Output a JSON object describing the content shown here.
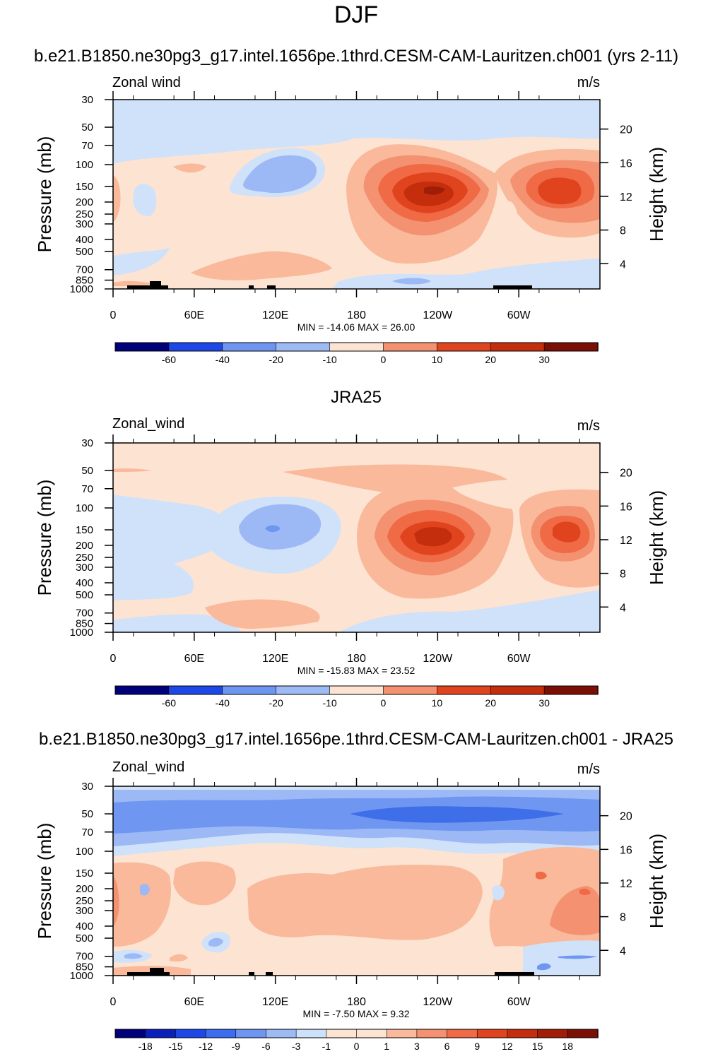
{
  "figure": {
    "season": "DJF",
    "colors": {
      "neg4": "#3e6fe8",
      "neg3": "#6f97f1",
      "neg2": "#9db9f5",
      "neg1": "#cfe2fa",
      "pos1": "#fde3d2",
      "pos2": "#f9b99a",
      "pos3": "#f39170",
      "pos4": "#ef6a45",
      "pos5": "#e0441f",
      "pos6": "#c52e0d",
      "land": "#000000"
    }
  },
  "chart_data": [
    {
      "type": "contour",
      "title": "b.e21.B1850.ne30pg3_g17.intel.1656pe.1thrd.CESM-CAM-Lauritzen.ch001 (yrs 2-11)",
      "variable_label": "Zonal wind",
      "units": "m/s",
      "ylabel": "Pressure (mb)",
      "ylabel_right": "Height (km)",
      "x_ticks": [
        "0",
        "60E",
        "120E",
        "180",
        "120W",
        "60W"
      ],
      "pressure_ticks": [
        "30",
        "50",
        "70",
        "100",
        "150",
        "200",
        "250",
        "300",
        "400",
        "500",
        "700",
        "850",
        "1000"
      ],
      "height_ticks": [
        "20",
        "16",
        "12",
        "8",
        "4"
      ],
      "min_max": "MIN = -14.06  MAX =  26.00",
      "colorbar_labels": [
        "-60",
        "-40",
        "-20",
        "-10",
        "0",
        "10",
        "20",
        "30"
      ],
      "min": -14.06,
      "max": 26.0
    },
    {
      "type": "contour",
      "title": "JRA25",
      "variable_label": "Zonal_wind",
      "units": "m/s",
      "ylabel": "Pressure (mb)",
      "ylabel_right": "Height (km)",
      "x_ticks": [
        "0",
        "60E",
        "120E",
        "180",
        "120W",
        "60W"
      ],
      "pressure_ticks": [
        "30",
        "50",
        "70",
        "100",
        "150",
        "200",
        "250",
        "300",
        "400",
        "500",
        "700",
        "850",
        "1000"
      ],
      "height_ticks": [
        "20",
        "16",
        "12",
        "8",
        "4"
      ],
      "min_max": "MIN = -15.83  MAX =  23.52",
      "colorbar_labels": [
        "-60",
        "-40",
        "-20",
        "-10",
        "0",
        "10",
        "20",
        "30"
      ],
      "min": -15.83,
      "max": 23.52
    },
    {
      "type": "contour",
      "title": "b.e21.B1850.ne30pg3_g17.intel.1656pe.1thrd.CESM-CAM-Lauritzen.ch001 - JRA25",
      "variable_label": "Zonal_wind",
      "units": "m/s",
      "ylabel": "Pressure (mb)",
      "ylabel_right": "Height (km)",
      "x_ticks": [
        "0",
        "60E",
        "120E",
        "180",
        "120W",
        "60W"
      ],
      "pressure_ticks": [
        "30",
        "50",
        "70",
        "100",
        "150",
        "200",
        "250",
        "300",
        "400",
        "500",
        "700",
        "850",
        "1000"
      ],
      "height_ticks": [
        "20",
        "16",
        "12",
        "8",
        "4"
      ],
      "min_max": "MIN =  -7.50  MAX =   9.32",
      "colorbar_labels": [
        "-18",
        "-15",
        "-12",
        "-9",
        "-6",
        "-3",
        "-1",
        "0",
        "1",
        "3",
        "6",
        "9",
        "12",
        "15",
        "18"
      ],
      "min": -7.5,
      "max": 9.32
    }
  ]
}
